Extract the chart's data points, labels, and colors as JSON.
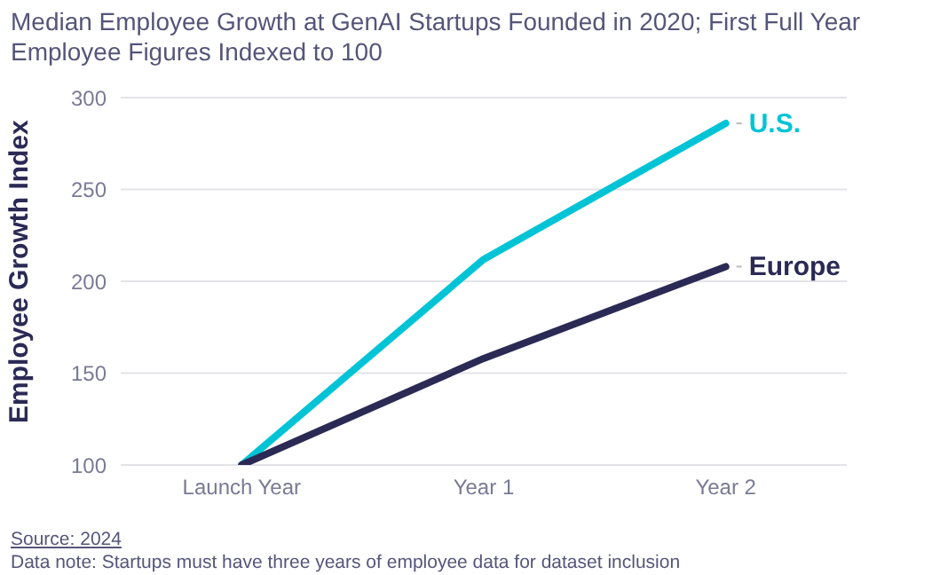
{
  "chart_data": {
    "type": "line",
    "title": "Median Employee Growth at GenAI Startups Founded in 2020; First Full Year Employee Figures Indexed to 100",
    "ylabel": "Employee Growth Index",
    "categories": [
      "Launch Year",
      "Year 1",
      "Year 2"
    ],
    "series": [
      {
        "name": "U.S.",
        "color": "#00c4d6",
        "values": [
          100,
          212,
          286
        ]
      },
      {
        "name": "Europe",
        "color": "#2b2a55",
        "values": [
          100,
          158,
          208
        ]
      }
    ],
    "ylim": [
      100,
      300
    ],
    "yticks": [
      100,
      150,
      200,
      250,
      300
    ],
    "grid": "y",
    "legend": false,
    "marker": "none",
    "line_style": "solid",
    "annotations": [
      "Source: 2024",
      "Data note: Startups must have three years of employee data for dataset inclusion"
    ]
  }
}
